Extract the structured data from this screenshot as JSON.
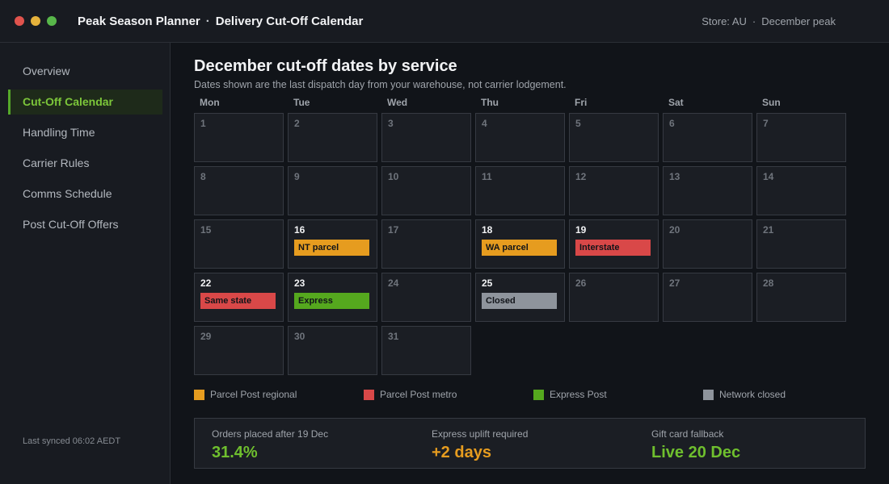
{
  "app": {
    "title": "Peak Season Planner",
    "separator": "·",
    "page": "Delivery Cut-Off Calendar",
    "store": "Store: AU",
    "season": "December peak"
  },
  "sidebar": {
    "items": [
      {
        "label": "Overview",
        "active": false
      },
      {
        "label": "Cut-Off Calendar",
        "active": true
      },
      {
        "label": "Handling Time",
        "active": false
      },
      {
        "label": "Carrier Rules",
        "active": false
      },
      {
        "label": "Comms Schedule",
        "active": false
      },
      {
        "label": "Post Cut-Off Offers",
        "active": false
      }
    ],
    "sync": "Last synced 06:02 AEDT"
  },
  "calendar": {
    "heading": "December cut-off dates by service",
    "subheading": "Dates shown are the last dispatch day from your warehouse, not carrier lodgement.",
    "weekdays": [
      "Mon",
      "Tue",
      "Wed",
      "Thu",
      "Fri",
      "Sat",
      "Sun"
    ],
    "days": [
      {
        "day": "1"
      },
      {
        "day": "2"
      },
      {
        "day": "3"
      },
      {
        "day": "4"
      },
      {
        "day": "5"
      },
      {
        "day": "6"
      },
      {
        "day": "7"
      },
      {
        "day": "8"
      },
      {
        "day": "9"
      },
      {
        "day": "10"
      },
      {
        "day": "11"
      },
      {
        "day": "12"
      },
      {
        "day": "13"
      },
      {
        "day": "14"
      },
      {
        "day": "15"
      },
      {
        "day": "16",
        "event": "NT parcel",
        "color": "#e69c1f"
      },
      {
        "day": "17"
      },
      {
        "day": "18",
        "event": "WA parcel",
        "color": "#e69c1f"
      },
      {
        "day": "19",
        "event": "Interstate",
        "color": "#d94848"
      },
      {
        "day": "20"
      },
      {
        "day": "21"
      },
      {
        "day": "22",
        "event": "Same state",
        "color": "#d94848"
      },
      {
        "day": "23",
        "event": "Express",
        "color": "#55a81e"
      },
      {
        "day": "24"
      },
      {
        "day": "25",
        "event": "Closed",
        "color": "#8e949c"
      },
      {
        "day": "26"
      },
      {
        "day": "27"
      },
      {
        "day": "28"
      },
      {
        "day": "29"
      },
      {
        "day": "30"
      },
      {
        "day": "31"
      }
    ]
  },
  "legend": [
    {
      "label": "Parcel Post regional",
      "color": "#e69c1f"
    },
    {
      "label": "Parcel Post metro",
      "color": "#d94848"
    },
    {
      "label": "Express Post",
      "color": "#55a81e"
    },
    {
      "label": "Network closed",
      "color": "#8e949c"
    }
  ],
  "stats": [
    {
      "label": "Orders placed after 19 Dec",
      "value": "31.4%",
      "color": "#6fbf2e"
    },
    {
      "label": "Express uplift required",
      "value": "+2 days",
      "color": "#e69c1f"
    },
    {
      "label": "Gift card fallback",
      "value": "Live 20 Dec",
      "color": "#6fbf2e"
    }
  ]
}
